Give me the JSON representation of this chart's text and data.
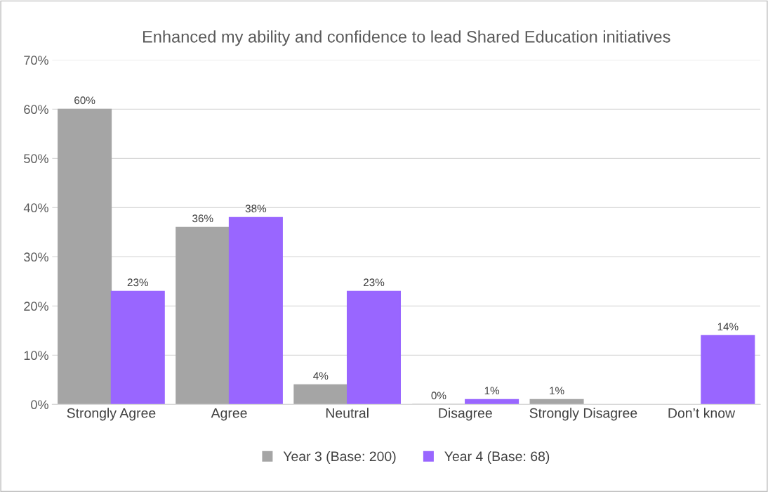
{
  "chart_data": {
    "type": "bar",
    "title": "Enhanced my ability and confidence to lead Shared Education initiatives",
    "categories": [
      "Strongly Agree",
      "Agree",
      "Neutral",
      "Disagree",
      "Strongly Disagree",
      "Don’t know"
    ],
    "series": [
      {
        "name": "Year 3 (Base: 200)",
        "color": "#a5a5a5",
        "values": [
          60,
          36,
          4,
          0,
          1,
          null
        ],
        "value_labels": [
          "60%",
          "36%",
          "4%",
          "0%",
          "1%",
          null
        ]
      },
      {
        "name": "Year 4 (Base: 68)",
        "color": "#9966ff",
        "values": [
          23,
          38,
          23,
          1,
          null,
          14
        ],
        "value_labels": [
          "23%",
          "38%",
          "23%",
          "1%",
          null,
          "14%"
        ]
      }
    ],
    "ylim": [
      0,
      70
    ],
    "yticks": [
      {
        "value": 0,
        "label": "0%"
      },
      {
        "value": 10,
        "label": "10%"
      },
      {
        "value": 20,
        "label": "20%"
      },
      {
        "value": 30,
        "label": "30%"
      },
      {
        "value": 40,
        "label": "40%"
      },
      {
        "value": 50,
        "label": "50%"
      },
      {
        "value": 60,
        "label": "60%"
      },
      {
        "value": 70,
        "label": "70%"
      }
    ],
    "grid": "y",
    "legend": "bottom"
  }
}
